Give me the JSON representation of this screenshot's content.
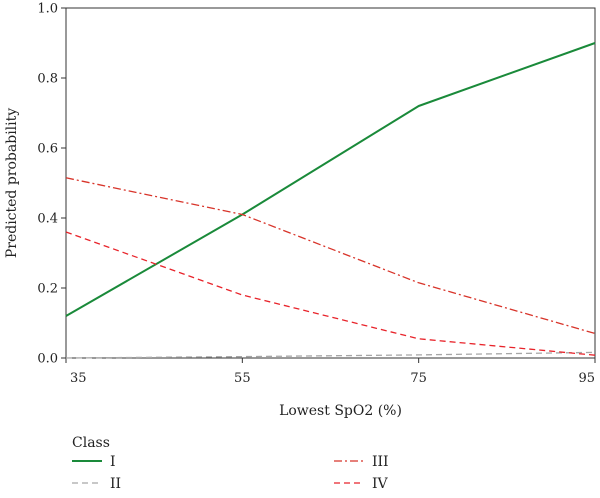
{
  "chart_data": {
    "type": "line",
    "title": "",
    "xlabel": "Lowest SpO2 (%)",
    "ylabel": "Predicted probability",
    "x": [
      35,
      55,
      75,
      95
    ],
    "xlim": [
      35,
      95
    ],
    "ylim": [
      0,
      1.0
    ],
    "xticks": [
      "35",
      "55",
      "75",
      "95"
    ],
    "yticks": [
      "0.0",
      "0.2",
      "0.4",
      "0.6",
      "0.8",
      "1.0"
    ],
    "grid": false,
    "legend": {
      "title": "Class",
      "position": "bottom"
    },
    "series": [
      {
        "name": "I",
        "values": [
          0.12,
          0.41,
          0.72,
          0.9
        ],
        "color": "#1a8a3a",
        "style": "solid"
      },
      {
        "name": "II",
        "values": [
          0.0,
          0.004,
          0.009,
          0.016
        ],
        "color": "#a6a6a6",
        "style": "dashed"
      },
      {
        "name": "III",
        "values": [
          0.515,
          0.41,
          0.215,
          0.07
        ],
        "color": "#d8342a",
        "style": "dashdot"
      },
      {
        "name": "IV",
        "values": [
          0.36,
          0.18,
          0.055,
          0.008
        ],
        "color": "#e8232a",
        "style": "dashed"
      }
    ]
  }
}
